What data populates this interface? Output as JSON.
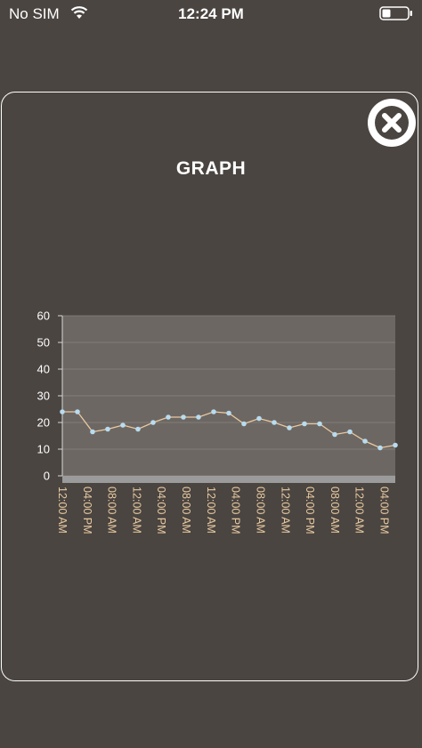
{
  "status_bar": {
    "carrier": "No SIM",
    "time": "12:24 PM"
  },
  "modal": {
    "title": "GRAPH",
    "close_icon": "close-icon"
  },
  "colors": {
    "background": "#4a4541",
    "plot_area": "#6d6763",
    "line": "#e8c9a0",
    "points": "#b8dcf0",
    "x_labels": "#e8c9a0",
    "x_axis_band": "#9b9b9b"
  },
  "chart_data": {
    "type": "line",
    "ylim": [
      0,
      60
    ],
    "y_ticks": [
      "60",
      "50",
      "40",
      "30",
      "20",
      "10",
      "0"
    ],
    "x_tick_labels": [
      "12:00 AM",
      "04:00 PM",
      "08:00 AM",
      "12:00 AM",
      "04:00 PM",
      "08:00 AM",
      "12:00 AM",
      "04:00 PM",
      "08:00 AM",
      "12:00 AM",
      "04:00 PM",
      "08:00 AM",
      "12:00 AM",
      "04:00 PM"
    ],
    "grid": true,
    "series": [
      {
        "values": [
          24,
          24,
          16.5,
          17.5,
          19,
          17.5,
          20,
          22,
          22,
          22,
          24,
          23.5,
          19.5,
          21.5,
          20,
          18,
          19.5,
          19.5,
          15.5,
          16.5,
          13,
          10.5,
          11.5
        ]
      }
    ]
  }
}
